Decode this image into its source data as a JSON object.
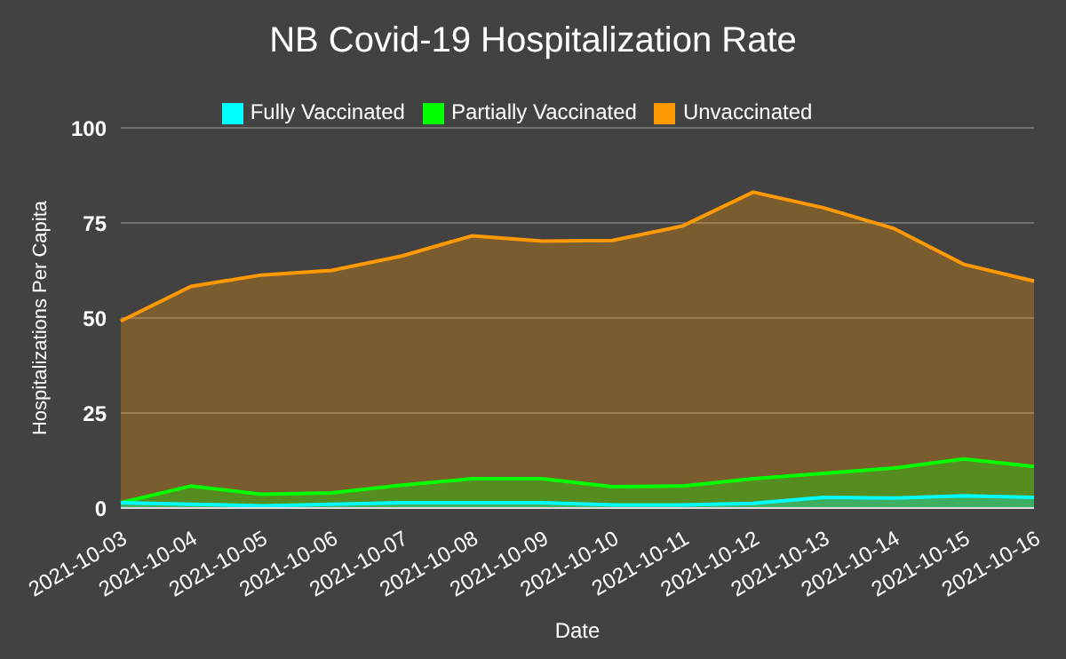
{
  "chart_data": {
    "type": "area",
    "title": "NB Covid-19 Hospitalization Rate",
    "xlabel": "Date",
    "ylabel": "Hospitalizations Per Capita",
    "categories": [
      "2021-10-03",
      "2021-10-04",
      "2021-10-05",
      "2021-10-06",
      "2021-10-07",
      "2021-10-08",
      "2021-10-09",
      "2021-10-10",
      "2021-10-11",
      "2021-10-12",
      "2021-10-13",
      "2021-10-14",
      "2021-10-15",
      "2021-10-16"
    ],
    "series": [
      {
        "name": "Unvaccinated",
        "color": "#ff9900",
        "values": [
          49.2,
          58.3,
          61.3,
          62.5,
          66.3,
          71.6,
          70.2,
          70.4,
          74.2,
          83.1,
          79.0,
          73.6,
          64.1,
          59.7
        ]
      },
      {
        "name": "Partially Vaccinated",
        "color": "#00ff00",
        "values": [
          1.4,
          5.8,
          3.6,
          4.0,
          6.0,
          7.7,
          7.7,
          5.6,
          5.8,
          7.7,
          9.1,
          10.5,
          12.9,
          10.9
        ]
      },
      {
        "name": "Fully Vaccinated",
        "color": "#00ffff",
        "values": [
          1.4,
          1.0,
          0.6,
          1.0,
          1.4,
          1.4,
          1.4,
          0.8,
          0.8,
          1.2,
          2.8,
          2.6,
          3.2,
          2.8
        ]
      }
    ],
    "ylim": [
      0,
      100
    ],
    "yticks": [
      0,
      25,
      50,
      75,
      100
    ],
    "grid": "y",
    "legend": "top"
  }
}
